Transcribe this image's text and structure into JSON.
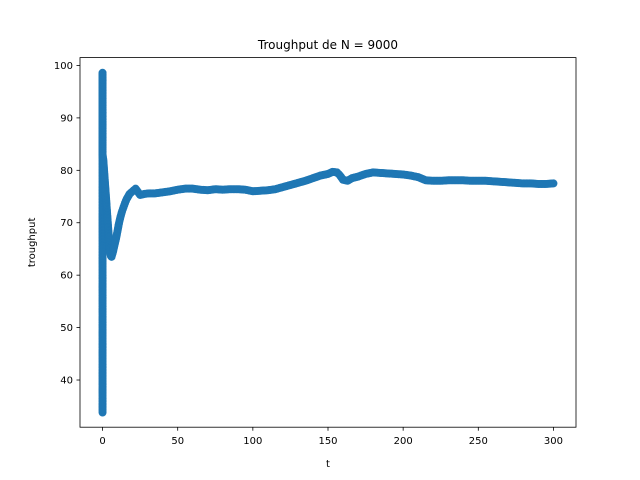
{
  "chart_data": {
    "type": "line",
    "title": "Troughput de N = 9000",
    "xlabel": "t",
    "ylabel": "troughput",
    "xlim": [
      -15,
      315
    ],
    "ylim": [
      31,
      101.5
    ],
    "x_ticks": [
      0,
      50,
      100,
      150,
      200,
      250,
      300
    ],
    "y_ticks": [
      40,
      50,
      60,
      70,
      80,
      90,
      100
    ],
    "grid": false,
    "legend": "none",
    "series": [
      {
        "color": "#1f77b4",
        "marker": "circle",
        "x": [
          0,
          0,
          0,
          0,
          0,
          0,
          0,
          0,
          0,
          0,
          0,
          0,
          0,
          0,
          0,
          0,
          0,
          0,
          0,
          0.5,
          1,
          1.5,
          2,
          2.5,
          3,
          3.5,
          4,
          4.5,
          5,
          5.5,
          6,
          7,
          8,
          9,
          10,
          11,
          12,
          13,
          14,
          15,
          16,
          18,
          20,
          22,
          25,
          28,
          31,
          35,
          40,
          45,
          50,
          55,
          60,
          65,
          70,
          75,
          80,
          85,
          90,
          95,
          100,
          105,
          110,
          115,
          120,
          125,
          130,
          135,
          140,
          145,
          150,
          153,
          156,
          158,
          160,
          163,
          166,
          170,
          175,
          180,
          185,
          190,
          195,
          200,
          205,
          210,
          215,
          220,
          225,
          230,
          235,
          240,
          245,
          250,
          255,
          260,
          265,
          270,
          275,
          280,
          285,
          290,
          295,
          300
        ],
        "y": [
          33.8,
          40.6,
          49.1,
          52.8,
          57.3,
          67.2,
          98.6,
          96.5,
          95.5,
          94,
          92,
          90,
          89,
          88,
          87,
          86,
          85,
          84,
          83,
          82,
          80,
          78,
          76,
          74,
          72,
          70,
          68,
          66,
          64.5,
          63.7,
          63.5,
          64.5,
          65.8,
          67,
          68.5,
          70,
          71.2,
          72.2,
          73,
          73.8,
          74.5,
          75.5,
          76,
          76.5,
          75.3,
          75.5,
          75.6,
          75.6,
          75.8,
          76,
          76.3,
          76.5,
          76.5,
          76.3,
          76.2,
          76.4,
          76.3,
          76.4,
          76.4,
          76.3,
          76,
          76.1,
          76.2,
          76.4,
          76.8,
          77.2,
          77.6,
          78,
          78.5,
          79,
          79.3,
          79.7,
          79.6,
          79,
          78.2,
          78,
          78.5,
          78.8,
          79.3,
          79.6,
          79.5,
          79.4,
          79.3,
          79.2,
          79,
          78.7,
          78.1,
          78,
          78,
          78.1,
          78.1,
          78.1,
          78,
          78,
          78,
          77.9,
          77.8,
          77.7,
          77.6,
          77.5,
          77.5,
          77.4,
          77.4,
          77.5
        ]
      }
    ]
  }
}
